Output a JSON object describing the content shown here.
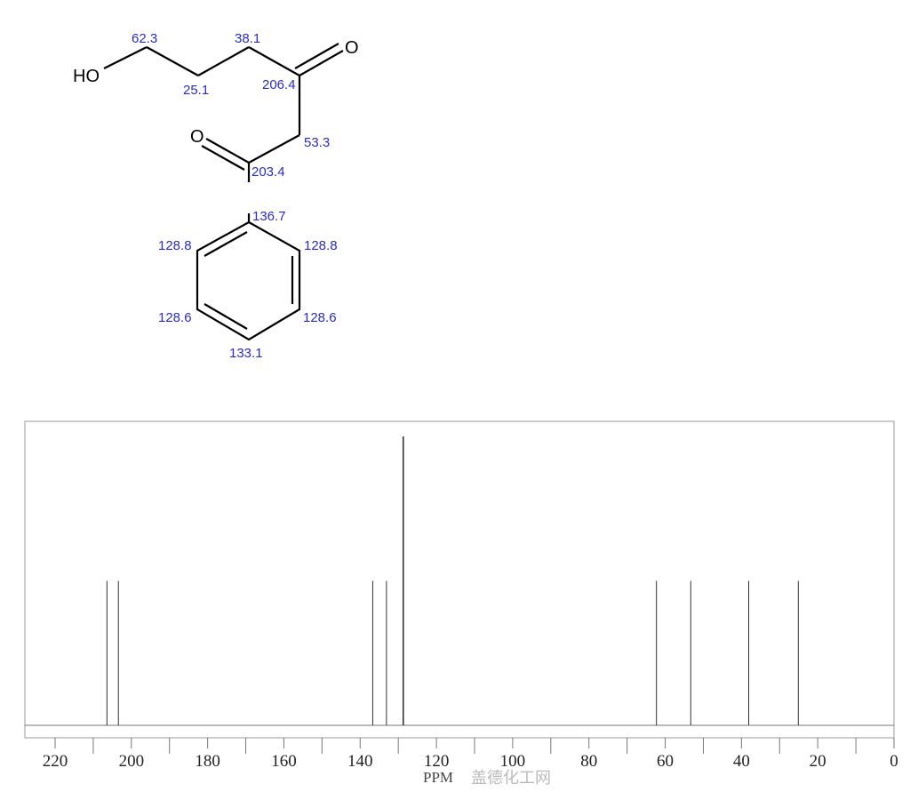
{
  "molecule": {
    "atoms": {
      "hydroxyl": "HO",
      "ketone_o1": "O",
      "ketone_o2": "O"
    },
    "shift_labels": [
      "62.3",
      "38.1",
      "25.1",
      "206.4",
      "53.3",
      "203.4",
      "136.7",
      "128.8",
      "128.8",
      "128.6",
      "128.6",
      "133.1"
    ]
  },
  "watermark": "盖德化工网",
  "chart_data": {
    "type": "bar",
    "title": "",
    "xlabel": "PPM",
    "ylabel": "",
    "xlim": [
      230,
      0
    ],
    "x_reversed": true,
    "x_ticks": [
      220,
      200,
      180,
      160,
      140,
      120,
      100,
      80,
      60,
      40,
      20,
      0
    ],
    "x_tick_labels": [
      "220",
      "200",
      "180",
      "160",
      "140",
      "120",
      "100",
      "80",
      "60",
      "40",
      "20",
      "0"
    ],
    "grid": false,
    "peaks": [
      {
        "ppm": 206.4,
        "intensity": 0.5
      },
      {
        "ppm": 203.4,
        "intensity": 0.5
      },
      {
        "ppm": 136.7,
        "intensity": 0.5
      },
      {
        "ppm": 133.1,
        "intensity": 0.5
      },
      {
        "ppm": 128.7,
        "intensity": 1.0
      },
      {
        "ppm": 62.3,
        "intensity": 0.5
      },
      {
        "ppm": 53.3,
        "intensity": 0.5
      },
      {
        "ppm": 38.1,
        "intensity": 0.5
      },
      {
        "ppm": 25.1,
        "intensity": 0.5
      }
    ],
    "colors": {
      "peak": "#333333",
      "frame": "#888888",
      "shift_label": "#2b2bc8"
    }
  }
}
